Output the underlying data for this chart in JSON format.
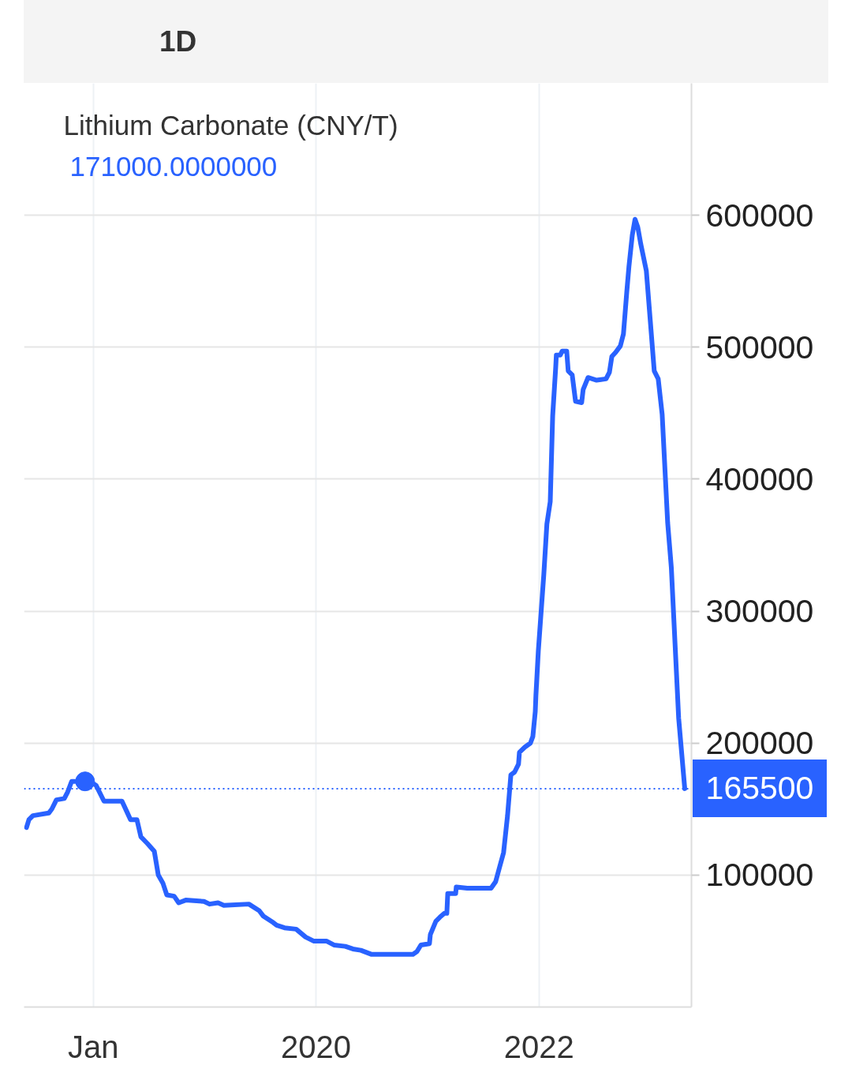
{
  "chart_data": {
    "type": "line",
    "title": "Lithium Carbonate (CNY/T)",
    "subtitle": "171000.0000000",
    "annotations": [
      "1D"
    ],
    "series": [
      {
        "color": "#2962ff",
        "x": [
          "2017-05-27",
          "2017-06-04",
          "2017-06-17",
          "2017-08-08",
          "2017-08-18",
          "2017-09-02",
          "2017-09-28",
          "2017-10-09",
          "2017-10-22",
          "2017-12-05",
          "2017-12-21",
          "2018-01-10",
          "2018-02-05",
          "2018-04-05",
          "2018-04-21",
          "2018-05-03",
          "2018-05-24",
          "2018-06-06",
          "2018-06-27",
          "2018-07-20",
          "2018-08-02",
          "2018-08-17",
          "2018-08-30",
          "2018-09-23",
          "2018-10-08",
          "2018-10-31",
          "2018-12-30",
          "2019-01-17",
          "2019-02-14",
          "2019-03-05",
          "2019-05-26",
          "2019-06-29",
          "2019-07-12",
          "2019-08-14",
          "2019-08-25",
          "2019-09-20",
          "2019-10-28",
          "2019-11-28",
          "2019-12-24",
          "2020-02-04",
          "2020-02-29",
          "2020-04-06",
          "2020-05-01",
          "2020-05-27",
          "2020-06-30",
          "2020-11-14",
          "2020-11-27",
          "2020-12-10",
          "2021-01-07",
          "2021-01-10",
          "2021-01-28",
          "2021-02-10",
          "2021-02-25",
          "2021-03-05",
          "2021-03-08",
          "2021-04-03",
          "2021-04-05",
          "2021-05-11",
          "2021-07-28",
          "2021-08-12",
          "2021-08-25",
          "2021-09-07",
          "2021-09-20",
          "2021-10-01",
          "2021-10-13",
          "2021-10-26",
          "2021-10-29",
          "2021-11-16",
          "2021-12-04",
          "2021-12-12",
          "2021-12-20",
          "2021-12-22",
          "2021-12-30",
          "2022-01-17",
          "2022-01-27",
          "2022-02-07",
          "2022-02-15",
          "2022-02-25",
          "2022-02-27",
          "2022-03-12",
          "2022-03-18",
          "2022-04-02",
          "2022-04-07",
          "2022-04-20",
          "2022-05-01",
          "2022-05-21",
          "2022-05-26",
          "2022-06-11",
          "2022-07-09",
          "2022-08-09",
          "2022-08-20",
          "2022-08-28",
          "2022-09-09",
          "2022-09-25",
          "2022-10-05",
          "2022-10-16",
          "2022-10-23",
          "2022-11-03",
          "2022-11-12",
          "2022-11-21",
          "2022-12-01",
          "2022-12-19",
          "2023-01-01",
          "2023-01-14",
          "2023-01-27",
          "2023-02-09",
          "2023-02-27",
          "2023-03-11",
          "2023-04-04",
          "2023-04-24"
        ],
        "values": [
          136000,
          142000,
          145000,
          147000,
          150000,
          157000,
          158000,
          163000,
          171000,
          171000,
          171000,
          168000,
          156000,
          156000,
          148000,
          142000,
          142000,
          129000,
          124000,
          118000,
          100000,
          94000,
          85000,
          84000,
          79000,
          81000,
          80000,
          78000,
          79000,
          77000,
          78000,
          73000,
          69000,
          64000,
          62000,
          60000,
          59000,
          53000,
          50000,
          50000,
          47000,
          46000,
          44000,
          43000,
          40000,
          40000,
          42000,
          47000,
          48000,
          55000,
          65000,
          68000,
          71000,
          71000,
          86000,
          86000,
          91000,
          90000,
          90000,
          95000,
          106000,
          117000,
          145000,
          176000,
          178000,
          184000,
          193000,
          197000,
          200000,
          205000,
          224000,
          236000,
          270000,
          328000,
          366000,
          383000,
          448000,
          485000,
          494000,
          494000,
          497000,
          497000,
          482000,
          479000,
          459000,
          458000,
          468000,
          477000,
          475000,
          476000,
          481000,
          493000,
          496000,
          501000,
          510000,
          542000,
          561000,
          585000,
          597000,
          591000,
          578000,
          558000,
          520000,
          482000,
          476000,
          449000,
          367000,
          333000,
          219000,
          165500
        ]
      },
      {
        "type": "scatter",
        "color": "#2962ff",
        "marker": "circle",
        "x": [
          "2017-12-05"
        ],
        "values": [
          171000
        ]
      }
    ],
    "xlim": [
      "2017-05-19",
      "2023-05-16"
    ],
    "xticks": [
      {
        "value": "2018-01-01",
        "label": "Jan"
      },
      {
        "value": "2020-01-01",
        "label": "2020"
      },
      {
        "value": "2022-01-01",
        "label": "2022"
      }
    ],
    "ylim": [
      0,
      700000
    ],
    "yticks": [
      100000,
      200000,
      300000,
      400000,
      500000,
      600000
    ],
    "ref_lines": [
      {
        "axis": "y",
        "value": 165500,
        "label": "165500",
        "color": "#2962ff",
        "line_style": "dotted"
      }
    ],
    "grid": true,
    "line_style": "solid"
  }
}
